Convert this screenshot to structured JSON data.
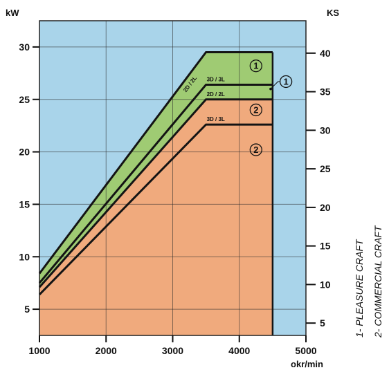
{
  "chart_data": {
    "type": "area",
    "x_axis": {
      "unit_label": "okr/min",
      "range": [
        1000,
        5000
      ],
      "ticks": [
        1000,
        2000,
        3000,
        4000,
        5000
      ],
      "tick_labels": [
        "1000",
        "2000",
        "3000",
        "4000",
        "5000"
      ]
    },
    "y_left": {
      "unit_label": "kW",
      "range": [
        2.5,
        32.5
      ],
      "ticks": [
        5,
        10,
        15,
        20,
        25,
        30
      ],
      "tick_labels": [
        "5",
        "10",
        "15",
        "20",
        "25",
        "30"
      ]
    },
    "y_right": {
      "unit_label": "KS",
      "range": [
        3.4,
        44.2
      ],
      "ticks": [
        5,
        10,
        15,
        20,
        25,
        30,
        35,
        40
      ],
      "tick_labels": [
        "5",
        "10",
        "15",
        "20",
        "25",
        "30",
        "35",
        "40"
      ]
    },
    "grid": true,
    "colors": {
      "background": "#a9d4ea",
      "pleasure_region": "#9fcb73",
      "commercial_region": "#f0aa7d",
      "line": "#141414"
    },
    "series": [
      {
        "name": "2D / 2L",
        "x": [
          1000,
          3500,
          4500
        ],
        "y": [
          8.4,
          29.5,
          29.5
        ]
      },
      {
        "name": "3D / 3L",
        "x": [
          1000,
          3500,
          4500
        ],
        "y": [
          7.5,
          26.4,
          26.4
        ]
      },
      {
        "name": "2D / 2L",
        "x": [
          1000,
          3500,
          4500
        ],
        "y": [
          7.1,
          25.0,
          25.0
        ]
      },
      {
        "name": "3D / 3L",
        "x": [
          1000,
          3500,
          4500
        ],
        "y": [
          6.4,
          22.6,
          22.6
        ]
      }
    ],
    "region_markers": [
      {
        "label": "1",
        "x": 4250,
        "y": 28.2
      },
      {
        "label": "1",
        "x": 4700,
        "y": 26.7
      },
      {
        "label": "2",
        "x": 4250,
        "y": 24.0
      },
      {
        "label": "2",
        "x": 4250,
        "y": 20.2
      }
    ],
    "legend": [
      "1- PLEASURE CRAFT",
      "2- COMMERCIAL CRAFT"
    ]
  }
}
